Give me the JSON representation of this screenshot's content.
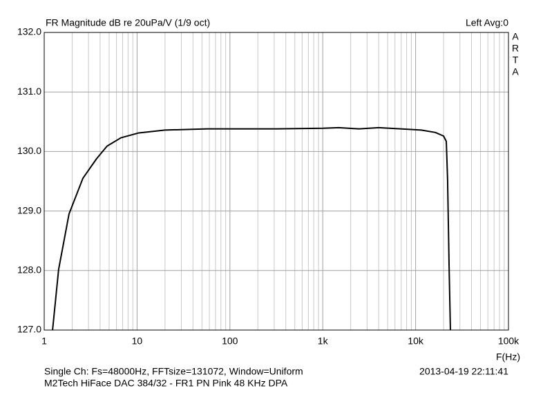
{
  "chart_data": {
    "type": "line",
    "title": "FR Magnitude dB re 20uPa/V (1/9 oct)",
    "channel_label": "Left  Avg:0",
    "brand": "ARTA",
    "x_label": "F(Hz)",
    "footer_left": [
      "Single Ch: Fs=48000Hz, FFTsize=131072, Window=Uniform",
      "M2Tech HiFace DAC 384/32 - FR1 PN Pink 48 KHz     DPA"
    ],
    "footer_right": "2013-04-19  22:11:41",
    "x_log": true,
    "grid": true,
    "xlim": [
      1,
      100000
    ],
    "ylim": [
      127,
      132
    ],
    "xticks": [
      1,
      10,
      100,
      {
        "value": 1000,
        "label": "1k"
      },
      {
        "value": 10000,
        "label": "10k"
      },
      {
        "value": 100000,
        "label": "100k"
      }
    ],
    "yticks": [
      {
        "value": 127,
        "label": "127.0"
      },
      {
        "value": 128,
        "label": "128.0"
      },
      {
        "value": 129,
        "label": "129.0"
      },
      {
        "value": 130,
        "label": "130.0"
      },
      {
        "value": 131,
        "label": "131.0"
      },
      {
        "value": 132,
        "label": "132.0"
      }
    ],
    "series": [
      {
        "name": "Left",
        "color": "#000000",
        "x": [
          1.23,
          1.43,
          1.85,
          2.61,
          3.67,
          4.75,
          6.7,
          10.3,
          20,
          57,
          316,
          1000,
          1480,
          2470,
          4000,
          6900,
          11500,
          16300,
          20000,
          21400,
          22100,
          22900,
          23700
        ],
        "values": [
          127.0,
          128.02,
          128.95,
          129.55,
          129.88,
          130.09,
          130.23,
          130.31,
          130.36,
          130.38,
          130.38,
          130.39,
          130.4,
          130.38,
          130.4,
          130.38,
          130.36,
          130.32,
          130.26,
          130.17,
          129.53,
          128.14,
          127.0
        ]
      }
    ]
  }
}
